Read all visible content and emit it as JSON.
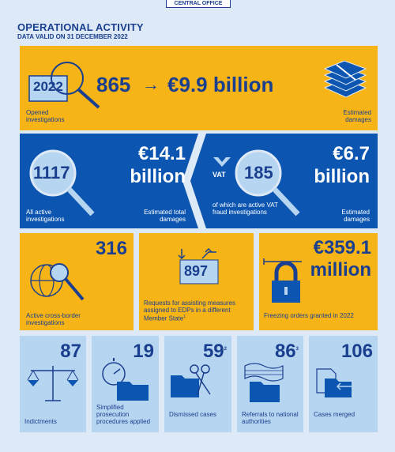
{
  "tag": "CENTRAL OFFICE",
  "header": {
    "title": "OPERATIONAL ACTIVITY",
    "subtitle": "DATA VALID ON 31 DECEMBER 2022"
  },
  "opened": {
    "year": "2022",
    "count": "865",
    "arrow": "→",
    "damages": "€9.9 billion",
    "count_label": "Opened investigations",
    "damages_label": "Estimated damages"
  },
  "active": {
    "count": "1117",
    "damages_line1": "€14.1",
    "damages_line2": "billion",
    "count_label": "All active investigations",
    "damages_label": "Estimated total damages"
  },
  "vat": {
    "badge": "VAT",
    "count": "185",
    "damages_line1": "€6.7",
    "damages_line2": "billion",
    "count_label": "of which are active VAT fraud investigations",
    "damages_label": "Estimated damages"
  },
  "crossborder": {
    "count": "316",
    "label": "Active cross-border investigations"
  },
  "assistance": {
    "count": "897",
    "label": "Requests for assisting measures assigned to EDPs in a different Member State",
    "footnote": "1"
  },
  "freezing": {
    "value_line1": "€359.1",
    "value_line2": "million",
    "label": "Freezing orders granted in 2022"
  },
  "bottom": [
    {
      "count": "87",
      "label": "Indictments",
      "footnote": ""
    },
    {
      "count": "19",
      "label": "Simplified prosecution procedures applied",
      "footnote": ""
    },
    {
      "count": "59",
      "label": "Dismissed cases",
      "footnote": "2"
    },
    {
      "count": "86",
      "label": "Referrals to national authorities",
      "footnote": "3"
    },
    {
      "count": "106",
      "label": "Cases merged",
      "footnote": ""
    }
  ],
  "colors": {
    "yellow": "#f6b417",
    "dark_blue": "#0c55b0",
    "light_blue": "#b6d5f0",
    "navy": "#1a3f8f",
    "background": "#dde9f6"
  },
  "icons": [
    "magnifier-icon",
    "money-stack-icon",
    "globe-icon",
    "arrows-document-icon",
    "padlock-icon",
    "scales-icon",
    "stopwatch-folder-icon",
    "scissors-folder-icon",
    "flag-folder-icon",
    "merge-documents-icon"
  ]
}
